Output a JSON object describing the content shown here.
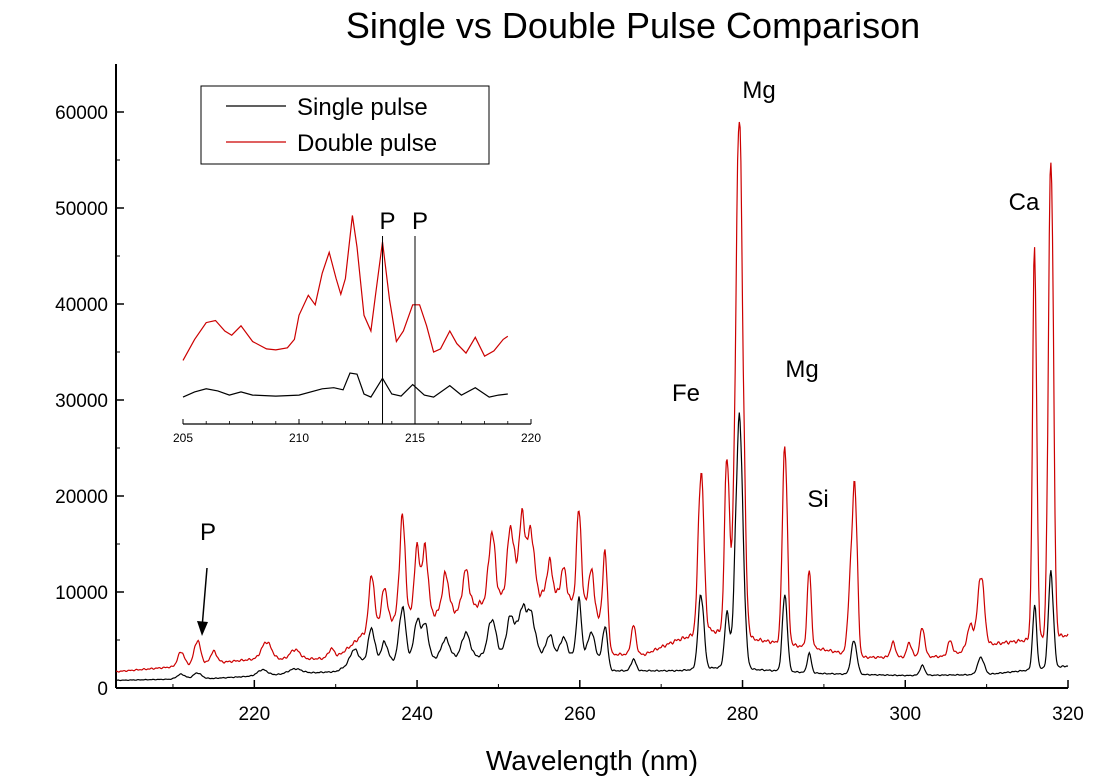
{
  "chart_data": {
    "type": "line",
    "title": "Single vs Double Pulse Comparison",
    "xlabel": "Wavelength (nm)",
    "ylabel": "",
    "xlim": [
      203,
      320
    ],
    "ylim": [
      0,
      65000
    ],
    "x_ticks": [
      220,
      240,
      260,
      280,
      300,
      320
    ],
    "y_ticks": [
      0,
      10000,
      20000,
      30000,
      40000,
      50000,
      60000
    ],
    "legend": {
      "position": "top-left",
      "entries": [
        "Single pulse",
        "Double pulse"
      ]
    },
    "series": [
      {
        "name": "Single pulse",
        "color": "#000000",
        "baseline": [
          [
            203,
            800
          ],
          [
            215,
            1000
          ],
          [
            225,
            1500
          ],
          [
            230,
            1700
          ],
          [
            232,
            2600
          ],
          [
            245,
            3200
          ],
          [
            255,
            3600
          ],
          [
            262,
            3300
          ],
          [
            264,
            1800
          ],
          [
            272,
            1800
          ],
          [
            278,
            2200
          ],
          [
            282,
            1900
          ],
          [
            290,
            1500
          ],
          [
            300,
            1300
          ],
          [
            310,
            1400
          ],
          [
            320,
            2300
          ]
        ],
        "peaks": [
          [
            211,
            500,
            0.5
          ],
          [
            213,
            600,
            0.5
          ],
          [
            221,
            600,
            0.6
          ],
          [
            225,
            500,
            0.8
          ],
          [
            232.3,
            1400,
            0.5
          ],
          [
            234.4,
            3500,
            0.4
          ],
          [
            236,
            2000,
            0.4
          ],
          [
            238.2,
            5500,
            0.4
          ],
          [
            240,
            4000,
            0.4
          ],
          [
            241,
            3500,
            0.4
          ],
          [
            243.5,
            2000,
            0.5
          ],
          [
            246,
            2500,
            0.5
          ],
          [
            249.2,
            3800,
            0.5
          ],
          [
            251.5,
            4000,
            0.5
          ],
          [
            252.9,
            4500,
            0.5
          ],
          [
            254,
            4000,
            0.5
          ],
          [
            256.3,
            2000,
            0.4
          ],
          [
            258,
            1800,
            0.4
          ],
          [
            259.9,
            5800,
            0.3
          ],
          [
            261.4,
            2500,
            0.4
          ],
          [
            263.1,
            4000,
            0.3
          ],
          [
            266.6,
            1200,
            0.3
          ],
          [
            274.9,
            7800,
            0.35
          ],
          [
            278.1,
            5500,
            0.3
          ],
          [
            279.6,
            26000,
            0.45
          ],
          [
            285.2,
            8000,
            0.3
          ],
          [
            288.2,
            2000,
            0.25
          ],
          [
            293.7,
            3500,
            0.35
          ],
          [
            302.1,
            1000,
            0.3
          ],
          [
            309.3,
            1800,
            0.4
          ],
          [
            315.9,
            6500,
            0.25
          ],
          [
            317.9,
            10000,
            0.3
          ]
        ]
      },
      {
        "name": "Double pulse",
        "color": "#cc0000",
        "baseline": [
          [
            203,
            1700
          ],
          [
            210,
            2200
          ],
          [
            215,
            2600
          ],
          [
            220,
            3000
          ],
          [
            225,
            3000
          ],
          [
            230,
            3100
          ],
          [
            232,
            4500
          ],
          [
            235,
            7000
          ],
          [
            245,
            8000
          ],
          [
            252,
            10000
          ],
          [
            258,
            9500
          ],
          [
            262,
            7500
          ],
          [
            264,
            3500
          ],
          [
            268,
            3500
          ],
          [
            272,
            5000
          ],
          [
            276,
            6000
          ],
          [
            282,
            5000
          ],
          [
            290,
            4000
          ],
          [
            295,
            3200
          ],
          [
            300,
            3200
          ],
          [
            305,
            3300
          ],
          [
            310,
            4500
          ],
          [
            320,
            5500
          ]
        ],
        "peaks": [
          [
            211,
            1500,
            0.4
          ],
          [
            213,
            2500,
            0.4
          ],
          [
            215,
            1200,
            0.4
          ],
          [
            221.5,
            1800,
            0.6
          ],
          [
            225,
            1000,
            0.6
          ],
          [
            229.5,
            1000,
            0.4
          ],
          [
            234.4,
            5500,
            0.3
          ],
          [
            236,
            3500,
            0.3
          ],
          [
            238.2,
            10500,
            0.35
          ],
          [
            240,
            7000,
            0.35
          ],
          [
            241,
            7000,
            0.35
          ],
          [
            243.5,
            4000,
            0.4
          ],
          [
            246,
            4000,
            0.4
          ],
          [
            249.2,
            7000,
            0.4
          ],
          [
            251.5,
            7000,
            0.4
          ],
          [
            252.9,
            8000,
            0.4
          ],
          [
            254,
            6500,
            0.4
          ],
          [
            256.3,
            3500,
            0.35
          ],
          [
            258,
            3000,
            0.35
          ],
          [
            259.9,
            10000,
            0.3
          ],
          [
            261.4,
            4500,
            0.35
          ],
          [
            263.1,
            8800,
            0.3
          ],
          [
            266.6,
            3000,
            0.3
          ],
          [
            274.9,
            17000,
            0.35
          ],
          [
            278.1,
            18500,
            0.3
          ],
          [
            279.6,
            53500,
            0.45
          ],
          [
            285.2,
            21000,
            0.3
          ],
          [
            288.2,
            8000,
            0.25
          ],
          [
            293.2,
            6000,
            0.3
          ],
          [
            293.8,
            17500,
            0.3
          ],
          [
            298.5,
            1500,
            0.3
          ],
          [
            300.5,
            1500,
            0.3
          ],
          [
            302.1,
            3000,
            0.3
          ],
          [
            305.5,
            1500,
            0.3
          ],
          [
            308,
            2500,
            0.4
          ],
          [
            309.3,
            7500,
            0.4
          ],
          [
            315.9,
            40500,
            0.25
          ],
          [
            317.9,
            51500,
            0.3
          ]
        ]
      }
    ],
    "annotations": [
      "Mg",
      "Mg",
      "Fe",
      "Si",
      "Ca",
      "P"
    ],
    "inset": {
      "xlim": [
        205,
        220
      ],
      "x_ticks": [
        205,
        210,
        215,
        220
      ],
      "markers": [
        {
          "label": "P",
          "x": 213.6
        },
        {
          "label": "P",
          "x": 215.0
        }
      ],
      "series": [
        {
          "name": "Double pulse",
          "color": "#cc0000",
          "points": [
            [
              205,
              37200
            ],
            [
              205.5,
              39200
            ],
            [
              206,
              40800
            ],
            [
              206.4,
              41000
            ],
            [
              206.8,
              40000
            ],
            [
              207.1,
              39600
            ],
            [
              207.5,
              40500
            ],
            [
              208,
              39000
            ],
            [
              208.6,
              38300
            ],
            [
              209,
              38200
            ],
            [
              209.5,
              38400
            ],
            [
              209.8,
              39200
            ],
            [
              210,
              41500
            ],
            [
              210.4,
              43400
            ],
            [
              210.7,
              42500
            ],
            [
              211,
              45500
            ],
            [
              211.3,
              47500
            ],
            [
              211.6,
              45000
            ],
            [
              211.8,
              43500
            ],
            [
              212,
              45000
            ],
            [
              212.3,
              51000
            ],
            [
              212.5,
              48000
            ],
            [
              212.8,
              41500
            ],
            [
              213.1,
              40000
            ],
            [
              213.3,
              43500
            ],
            [
              213.6,
              48500
            ],
            [
              213.9,
              43000
            ],
            [
              214.2,
              39000
            ],
            [
              214.5,
              40000
            ],
            [
              214.9,
              42500
            ],
            [
              215.2,
              42500
            ],
            [
              215.5,
              40500
            ],
            [
              215.8,
              38000
            ],
            [
              216.1,
              38300
            ],
            [
              216.5,
              40000
            ],
            [
              216.8,
              38800
            ],
            [
              217.2,
              37900
            ],
            [
              217.6,
              39400
            ],
            [
              218,
              37600
            ],
            [
              218.4,
              38100
            ],
            [
              218.8,
              39200
            ],
            [
              219,
              39500
            ]
          ]
        },
        {
          "name": "Single pulse",
          "color": "#000000",
          "points": [
            [
              205,
              33700
            ],
            [
              205.5,
              34200
            ],
            [
              206,
              34500
            ],
            [
              206.5,
              34300
            ],
            [
              207,
              33900
            ],
            [
              207.5,
              34200
            ],
            [
              208,
              33900
            ],
            [
              209,
              33800
            ],
            [
              210,
              33900
            ],
            [
              211,
              34500
            ],
            [
              211.5,
              34600
            ],
            [
              211.9,
              34400
            ],
            [
              212.2,
              36000
            ],
            [
              212.5,
              35900
            ],
            [
              212.8,
              34000
            ],
            [
              213.1,
              33700
            ],
            [
              213.6,
              35500
            ],
            [
              214,
              34000
            ],
            [
              214.4,
              33800
            ],
            [
              214.9,
              34900
            ],
            [
              215.4,
              33900
            ],
            [
              215.8,
              33700
            ],
            [
              216.5,
              34800
            ],
            [
              217,
              33900
            ],
            [
              217.6,
              34600
            ],
            [
              218.2,
              33700
            ],
            [
              218.6,
              33900
            ],
            [
              219,
              34000
            ]
          ]
        }
      ]
    }
  }
}
